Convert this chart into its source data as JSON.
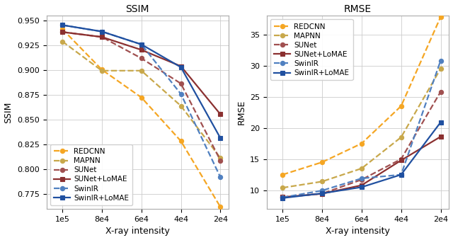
{
  "x_values": [
    100000,
    80000,
    60000,
    40000,
    20000
  ],
  "x_ticks": [
    100000,
    80000,
    60000,
    40000,
    20000
  ],
  "x_tick_labels": [
    "1e5",
    "8e4",
    "6e4",
    "4e4",
    "2e4"
  ],
  "ssim": {
    "REDCNN": [
      0.9415,
      0.9005,
      0.8725,
      0.8285,
      0.762
    ],
    "MAPNN": [
      0.929,
      0.8995,
      0.8995,
      0.864,
      0.8115
    ],
    "SUNet": [
      0.9385,
      0.9335,
      0.912,
      0.8865,
      0.809
    ],
    "SUNet+LoMAE": [
      0.9385,
      0.9335,
      0.9205,
      0.904,
      0.8555
    ],
    "SwinIR": [
      0.9455,
      0.939,
      0.926,
      0.876,
      0.792
    ],
    "SwinIR+LoMAE": [
      0.9455,
      0.939,
      0.926,
      0.903,
      0.8315
    ]
  },
  "rmse": {
    "REDCNN": [
      12.5,
      14.5,
      17.5,
      23.5,
      37.8
    ],
    "MAPNN": [
      10.4,
      11.4,
      13.5,
      18.5,
      29.5
    ],
    "SUNet": [
      8.9,
      9.45,
      11.7,
      15.0,
      25.8
    ],
    "SUNet+LoMAE": [
      8.9,
      9.45,
      10.8,
      14.8,
      18.6
    ],
    "SwinIR": [
      8.85,
      9.95,
      11.9,
      12.5,
      30.8
    ],
    "SwinIR+LoMAE": [
      8.75,
      9.5,
      10.5,
      12.5,
      20.9
    ]
  },
  "ssim_ylim": [
    0.76,
    0.955
  ],
  "rmse_ylim": [
    7,
    38
  ],
  "ssim_yticks": [
    0.775,
    0.8,
    0.825,
    0.85,
    0.875,
    0.9,
    0.925,
    0.95
  ],
  "rmse_yticks": [
    10,
    15,
    20,
    25,
    30,
    35
  ],
  "colors": {
    "REDCNN": "#F5A623",
    "MAPNN": "#C8A84B",
    "SUNet": "#A05050",
    "SUNet+LoMAE": "#8B3030",
    "SwinIR": "#5080C0",
    "SwinIR+LoMAE": "#2050A0"
  },
  "markers": {
    "REDCNN": "o",
    "MAPNN": "o",
    "SUNet": "o",
    "SUNet+LoMAE": "s",
    "SwinIR": "o",
    "SwinIR+LoMAE": "s"
  },
  "linestyles": {
    "REDCNN": "--",
    "MAPNN": "--",
    "SUNet": "--",
    "SUNet+LoMAE": "-",
    "SwinIR": "--",
    "SwinIR+LoMAE": "-"
  },
  "xlabel": "X-ray intensity",
  "ssim_ylabel": "SSIM",
  "rmse_ylabel": "RMSE",
  "ssim_title": "SSIM",
  "rmse_title": "RMSE",
  "grid_color": "#cccccc",
  "background_color": "#ffffff"
}
